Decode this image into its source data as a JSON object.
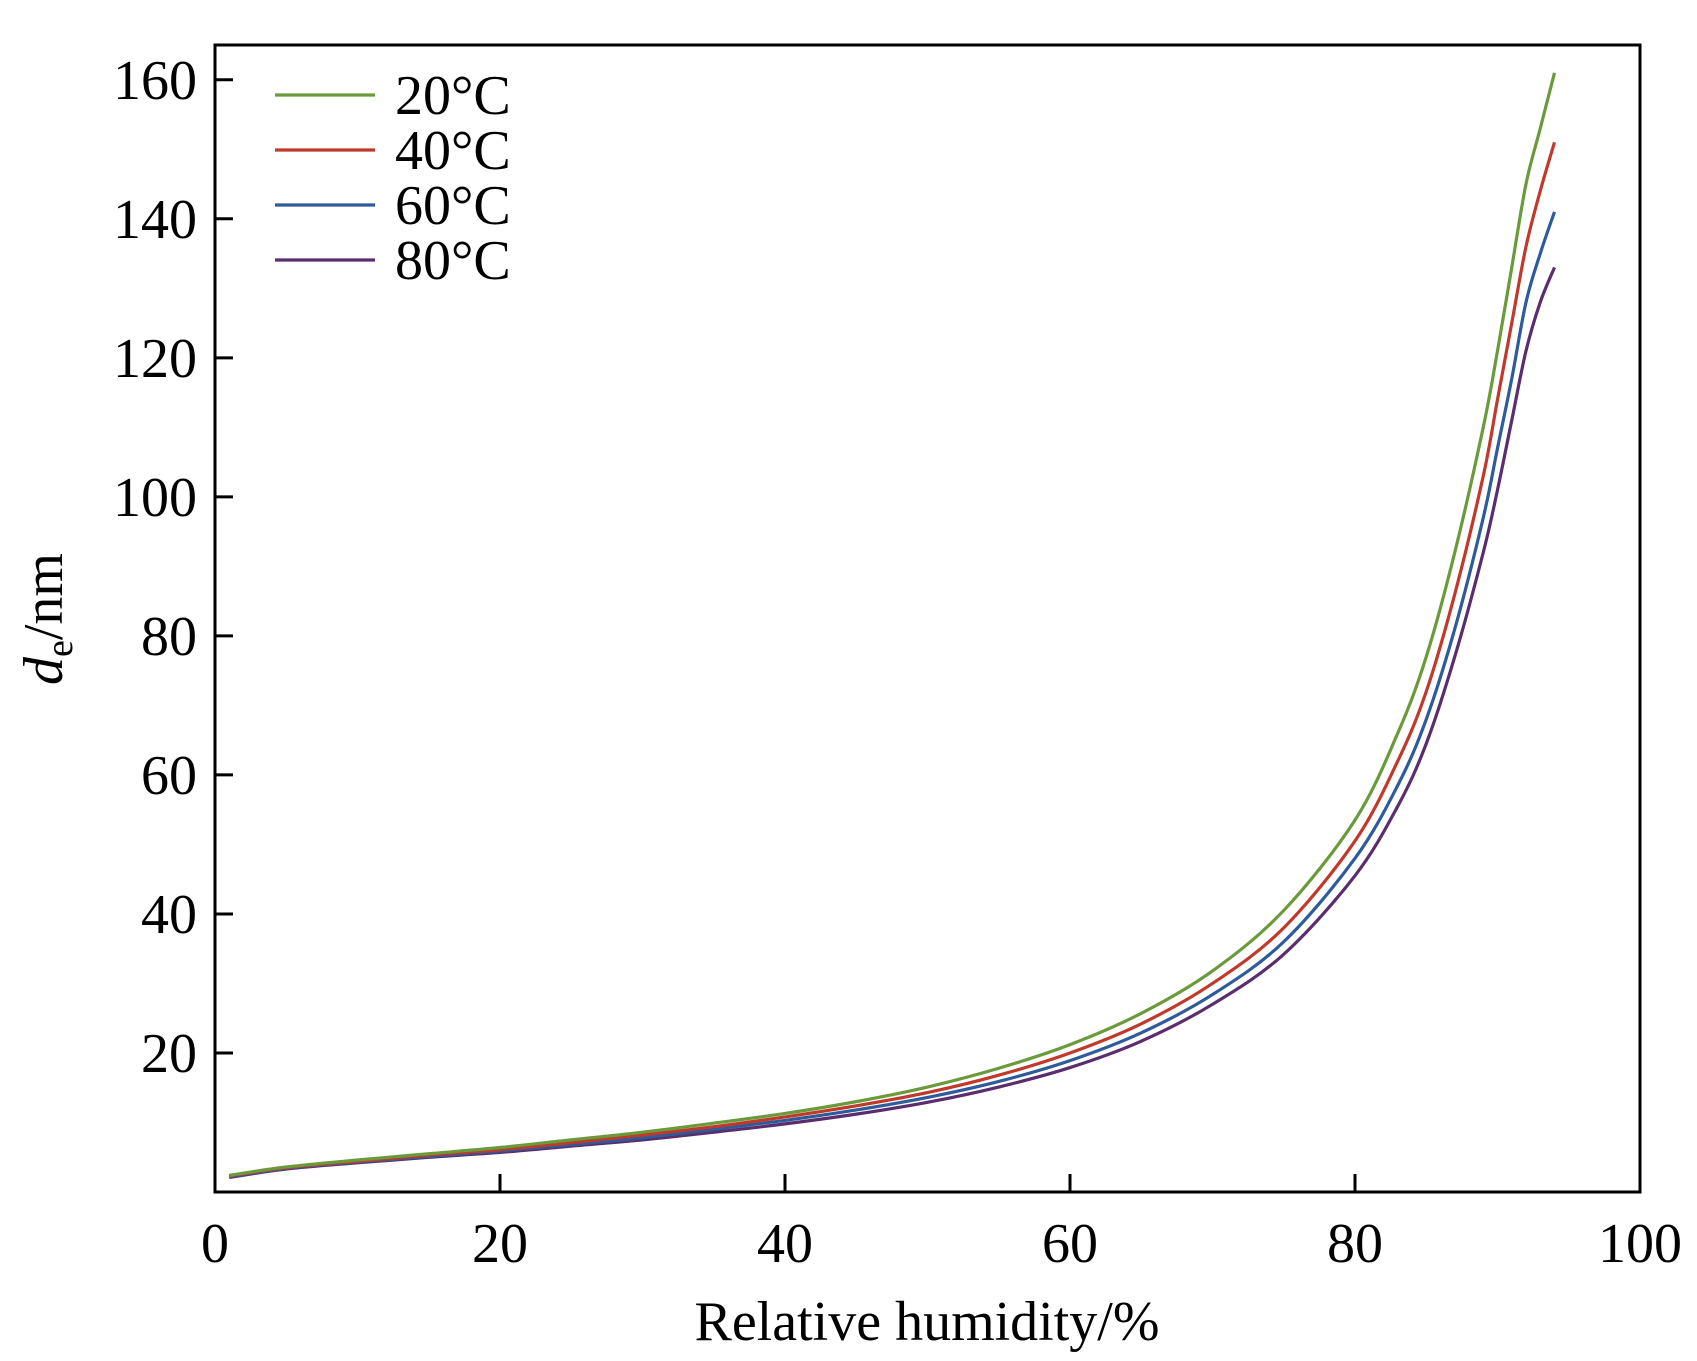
{
  "chart_data": {
    "type": "line",
    "xlabel": "Relative humidity/%",
    "ylabel": {
      "main": "d",
      "sub": "e",
      "unit": "/nm"
    },
    "xlim": [
      0,
      100
    ],
    "ylim": [
      0,
      165
    ],
    "xticks": [
      0,
      20,
      40,
      60,
      80,
      100
    ],
    "yticks": [
      20,
      40,
      60,
      80,
      100,
      120,
      140,
      160
    ],
    "grid": false,
    "legend_position": "top-left",
    "x": [
      1,
      5,
      10,
      15,
      20,
      25,
      30,
      35,
      40,
      45,
      50,
      55,
      60,
      65,
      70,
      75,
      80,
      83,
      85,
      87,
      89,
      90,
      91,
      92,
      93,
      94
    ],
    "series": [
      {
        "name": "20°C",
        "color": "#6a9a3a",
        "values": [
          2.4,
          3.6,
          4.6,
          5.5,
          6.4,
          7.5,
          8.6,
          9.9,
          11.3,
          13.0,
          15.1,
          17.8,
          21.2,
          25.7,
          31.8,
          40.5,
          53.5,
          66,
          77,
          92,
          110,
          121,
          133,
          145,
          153,
          161
        ]
      },
      {
        "name": "40°C",
        "color": "#c0392b",
        "values": [
          2.3,
          3.5,
          4.4,
          5.3,
          6.1,
          7.1,
          8.2,
          9.4,
          10.8,
          12.4,
          14.3,
          16.8,
          20.0,
          24.2,
          30.0,
          38.0,
          50.5,
          62,
          72,
          86,
          103,
          114,
          125,
          136,
          144,
          151
        ]
      },
      {
        "name": "60°C",
        "color": "#2e5b9a",
        "values": [
          2.2,
          3.4,
          4.3,
          5.1,
          5.9,
          6.8,
          7.8,
          9.0,
          10.3,
          11.8,
          13.6,
          15.9,
          18.9,
          22.9,
          28.4,
          36.0,
          48.0,
          58.5,
          68,
          81,
          97,
          107,
          117,
          128,
          135,
          141
        ]
      },
      {
        "name": "80°C",
        "color": "#5b2d6e",
        "values": [
          2.1,
          3.3,
          4.2,
          5.0,
          5.7,
          6.6,
          7.5,
          8.6,
          9.8,
          11.2,
          12.9,
          15.1,
          17.9,
          21.7,
          27.0,
          34.2,
          45.5,
          55.5,
          64.5,
          77,
          92,
          101,
          111,
          121,
          128,
          133
        ]
      }
    ]
  }
}
